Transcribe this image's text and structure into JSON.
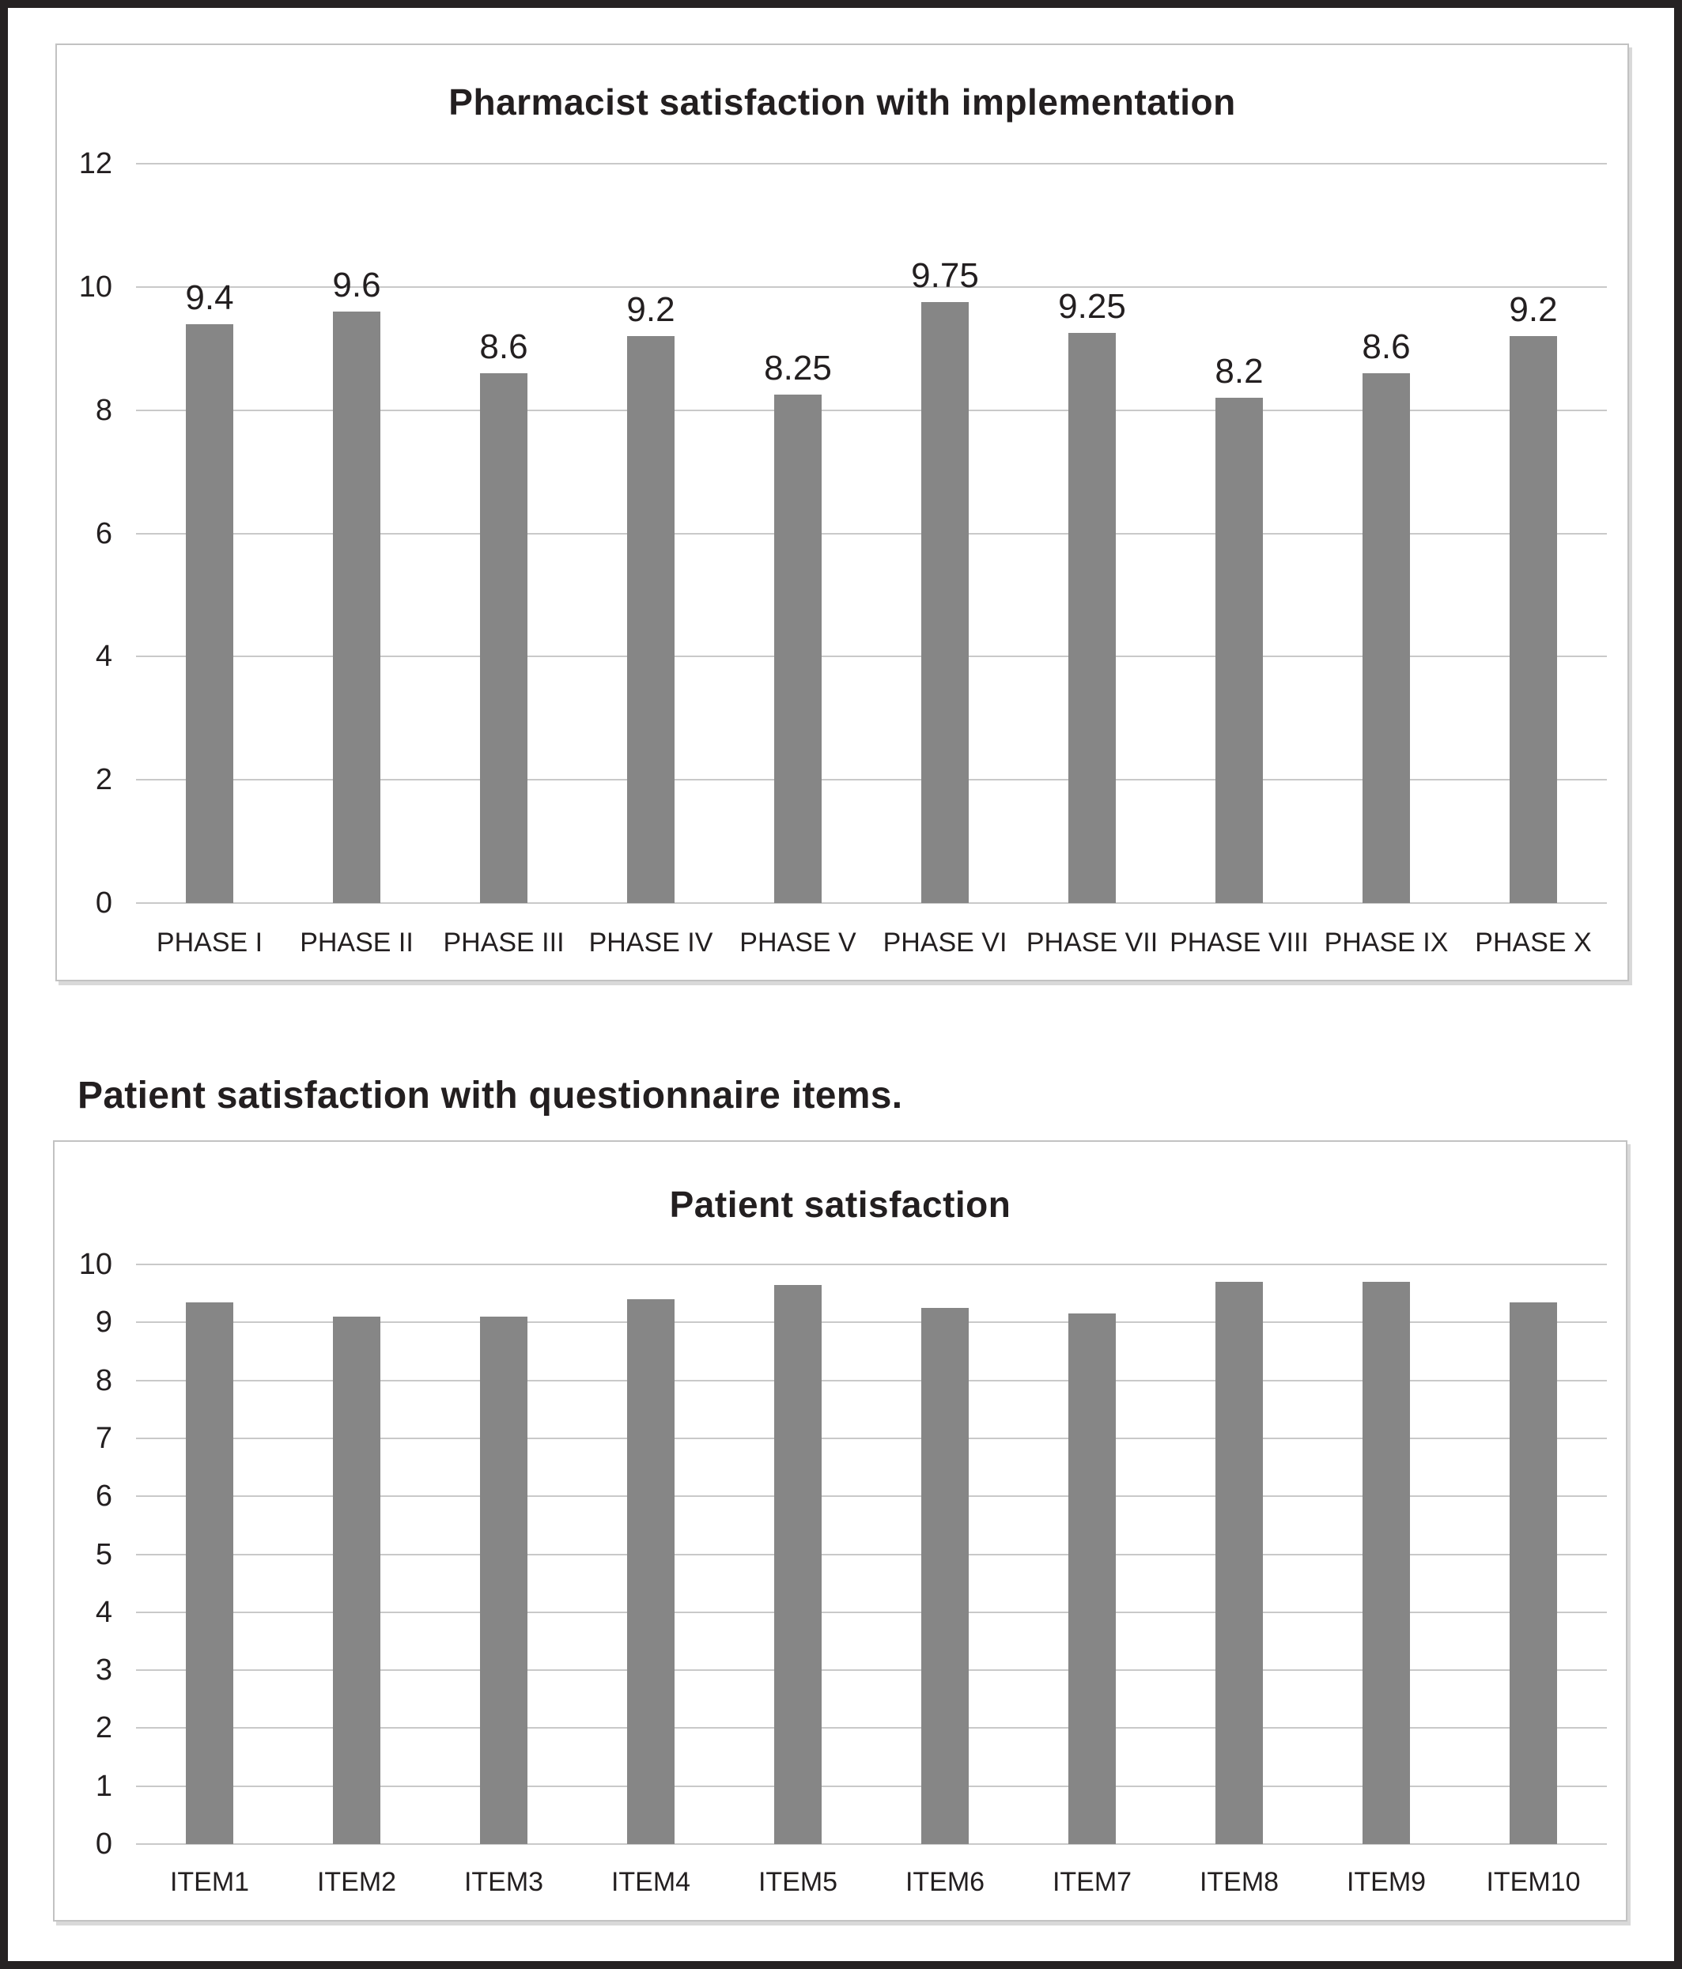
{
  "caption": "Patient satisfaction with questionnaire items.",
  "colors": {
    "bar": "#868686",
    "gridline": "#c9c9c9",
    "panel_border": "#c2c2c2",
    "outer_border": "#262223",
    "text": "#231f20"
  },
  "chart_data": [
    {
      "type": "bar",
      "title": "Pharmacist satisfaction with implementation",
      "categories": [
        "PHASE I",
        "PHASE II",
        "PHASE III",
        "PHASE IV",
        "PHASE V",
        "PHASE VI",
        "PHASE VII",
        "PHASE VIII",
        "PHASE IX",
        "PHASE X"
      ],
      "values": [
        9.4,
        9.6,
        8.6,
        9.2,
        8.25,
        9.75,
        9.25,
        8.2,
        8.6,
        9.2
      ],
      "value_labels": [
        "9.4",
        "9.6",
        "8.6",
        "9.2",
        "8.25",
        "9.75",
        "9.25",
        "8.2",
        "8.6",
        "9.2"
      ],
      "show_value_labels": true,
      "xlabel": "",
      "ylabel": "",
      "ylim": [
        0,
        12
      ],
      "yticks": [
        0,
        2,
        4,
        6,
        8,
        10,
        12
      ],
      "grid": true,
      "legend": "none",
      "bar_color": "#868686"
    },
    {
      "type": "bar",
      "title": "Patient satisfaction",
      "categories": [
        "ITEM1",
        "ITEM2",
        "ITEM3",
        "ITEM4",
        "ITEM5",
        "ITEM6",
        "ITEM7",
        "ITEM8",
        "ITEM9",
        "ITEM10"
      ],
      "values": [
        9.35,
        9.1,
        9.1,
        9.4,
        9.65,
        9.25,
        9.15,
        9.7,
        9.7,
        9.35
      ],
      "show_value_labels": false,
      "xlabel": "",
      "ylabel": "",
      "ylim": [
        0,
        10
      ],
      "yticks": [
        0,
        1,
        2,
        3,
        4,
        5,
        6,
        7,
        8,
        9,
        10
      ],
      "grid": true,
      "legend": "none",
      "bar_color": "#868686"
    }
  ]
}
